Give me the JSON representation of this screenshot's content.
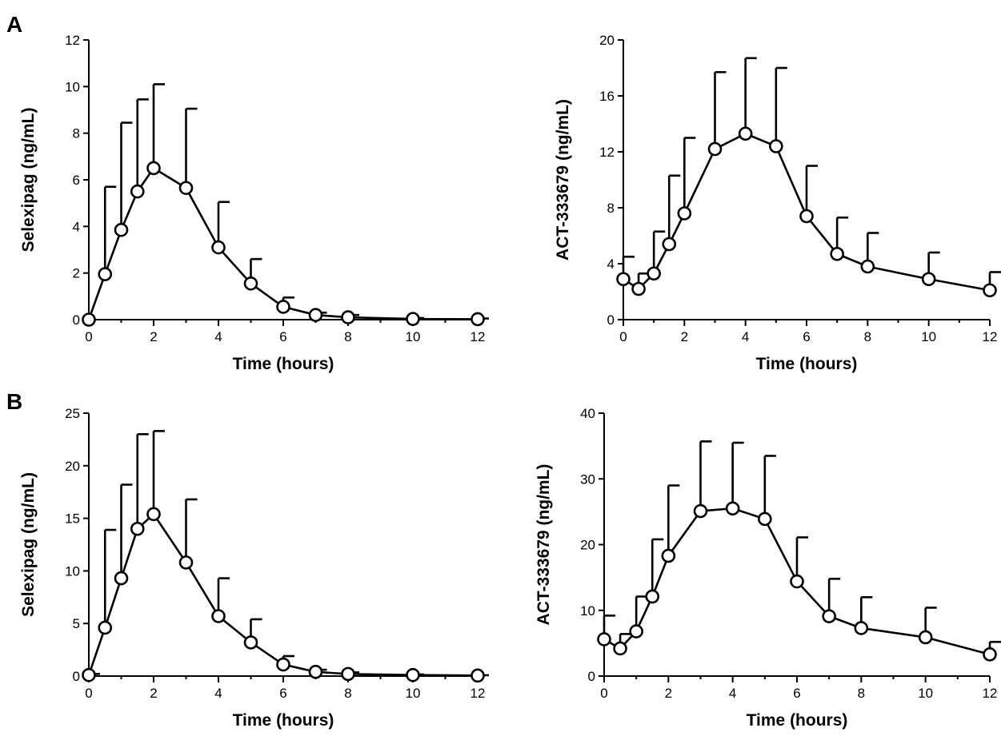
{
  "panel_labels": [
    "A",
    "B"
  ],
  "chart_data": [
    {
      "type": "line",
      "panel": "A",
      "xlabel": "Time (hours)",
      "ylabel": "Selexipag (ng/mL)",
      "xlim": [
        0,
        12
      ],
      "ylim": [
        0,
        12
      ],
      "xticks": [
        "0",
        "2",
        "4",
        "6",
        "8",
        "10",
        "12"
      ],
      "yticks": [
        "0",
        "2",
        "4",
        "6",
        "8",
        "10",
        "12"
      ],
      "grid": false,
      "series": [
        {
          "x": [
            0,
            0.5,
            1,
            1.5,
            2,
            3,
            4,
            5,
            6,
            7,
            8,
            10,
            12
          ],
          "y": [
            0,
            1.95,
            3.85,
            5.5,
            6.5,
            5.65,
            3.1,
            1.55,
            0.55,
            0.2,
            0.1,
            0.03,
            0.02
          ],
          "err_upper": [
            0,
            5.7,
            8.45,
            9.45,
            10.1,
            9.05,
            5.05,
            2.6,
            0.95,
            0.3,
            0.2,
            0.07,
            0.05
          ]
        }
      ]
    },
    {
      "type": "line",
      "panel": "A",
      "xlabel": "Time (hours)",
      "ylabel": "ACT-333679 (ng/mL)",
      "xlim": [
        0,
        12
      ],
      "ylim": [
        0,
        20
      ],
      "xticks": [
        "0",
        "2",
        "4",
        "6",
        "8",
        "10",
        "12"
      ],
      "yticks": [
        "0",
        "4",
        "8",
        "12",
        "16",
        "20"
      ],
      "grid": false,
      "series": [
        {
          "x": [
            0,
            0.5,
            1,
            1.5,
            2,
            3,
            4,
            5,
            6,
            7,
            8,
            10,
            12
          ],
          "y": [
            2.9,
            2.2,
            3.3,
            5.4,
            7.6,
            12.2,
            13.3,
            12.4,
            7.4,
            4.7,
            3.8,
            2.9,
            2.1
          ],
          "err_upper": [
            4.5,
            3.3,
            6.3,
            10.3,
            13.0,
            17.7,
            18.7,
            18.0,
            11.0,
            7.3,
            6.2,
            4.8,
            3.4
          ]
        }
      ]
    },
    {
      "type": "line",
      "panel": "B",
      "xlabel": "Time (hours)",
      "ylabel": "Selexipag (ng/mL)",
      "xlim": [
        0,
        12
      ],
      "ylim": [
        0,
        25
      ],
      "xticks": [
        "0",
        "2",
        "4",
        "6",
        "8",
        "10",
        "12"
      ],
      "yticks": [
        "0",
        "5",
        "10",
        "15",
        "20",
        "25"
      ],
      "grid": false,
      "series": [
        {
          "x": [
            0,
            0.5,
            1,
            1.5,
            2,
            3,
            4,
            5,
            6,
            7,
            8,
            10,
            12
          ],
          "y": [
            0.1,
            4.6,
            9.3,
            14.0,
            15.4,
            10.8,
            5.7,
            3.2,
            1.1,
            0.4,
            0.2,
            0.1,
            0.05
          ],
          "err_upper": [
            0.2,
            13.9,
            18.2,
            23.0,
            23.3,
            16.8,
            9.3,
            5.4,
            1.9,
            0.6,
            0.35,
            0.15,
            0.08
          ]
        }
      ]
    },
    {
      "type": "line",
      "panel": "B",
      "xlabel": "Time (hours)",
      "ylabel": "ACT-333679 (ng/mL)",
      "xlim": [
        0,
        12
      ],
      "ylim": [
        0,
        40
      ],
      "xticks": [
        "0",
        "2",
        "4",
        "6",
        "8",
        "10",
        "12"
      ],
      "yticks": [
        "0",
        "10",
        "20",
        "30",
        "40"
      ],
      "grid": false,
      "series": [
        {
          "x": [
            0,
            0.5,
            1,
            1.5,
            2,
            3,
            4,
            5,
            6,
            7,
            8,
            10,
            12
          ],
          "y": [
            5.6,
            4.2,
            6.8,
            12.1,
            18.3,
            25.1,
            25.5,
            23.9,
            14.4,
            9.1,
            7.3,
            5.9,
            3.3
          ],
          "err_upper": [
            9.2,
            6.4,
            12.1,
            20.8,
            29.0,
            35.7,
            35.5,
            33.5,
            21.1,
            14.8,
            12.0,
            10.4,
            5.2
          ]
        }
      ]
    }
  ]
}
